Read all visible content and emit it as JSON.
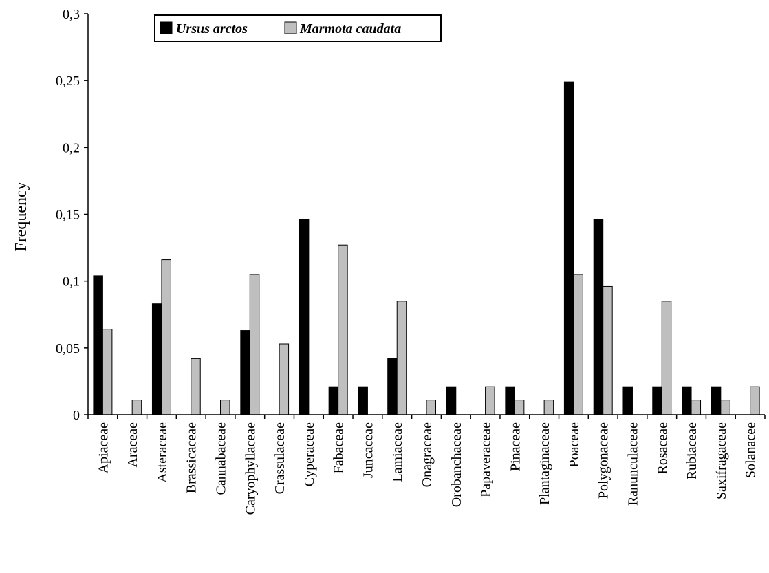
{
  "chart_data": {
    "type": "bar",
    "title": "",
    "xlabel": "",
    "ylabel": "Frequency",
    "ylim": [
      0,
      0.3
    ],
    "yticks": [
      "0",
      "0,05",
      "0,1",
      "0,15",
      "0,2",
      "0,25",
      "0,3"
    ],
    "ytick_values": [
      0,
      0.05,
      0.1,
      0.15,
      0.2,
      0.25,
      0.3
    ],
    "grid": false,
    "legend_position": "top-left",
    "categories": [
      "Apiaceae",
      "Araceae",
      "Asteraceae",
      "Brassicaceae",
      "Cannabaceae",
      "Caryophyllaceae",
      "Crassulaceae",
      "Cyperaceae",
      "Fabaceae",
      "Juncaceae",
      "Lamiaceae",
      "Onagraceae",
      "Orobanchaceae",
      "Papaveraceae",
      "Pinaceae",
      "Plantaginaceae",
      "Poaceae",
      "Polygonaceae",
      "Ranunculaceae",
      "Rosaceae",
      "Rubiaceae",
      "Saxifragaceae",
      "Solanacee"
    ],
    "series": [
      {
        "name": "Ursus arctos",
        "color": "#000000",
        "values": [
          0.104,
          0,
          0.083,
          0,
          0,
          0.063,
          0,
          0.146,
          0.021,
          0.021,
          0.042,
          0,
          0.021,
          0,
          0.021,
          0,
          0.249,
          0.146,
          0.021,
          0.021,
          0.021,
          0.021,
          0
        ]
      },
      {
        "name": "Marmota caudata",
        "color": "#bfbfbf",
        "values": [
          0.064,
          0.011,
          0.116,
          0.042,
          0.011,
          0.105,
          0.053,
          0,
          0.127,
          0,
          0.085,
          0.011,
          0,
          0.021,
          0.011,
          0.011,
          0.105,
          0.096,
          0,
          0.085,
          0.011,
          0.011,
          0.021
        ]
      }
    ]
  }
}
